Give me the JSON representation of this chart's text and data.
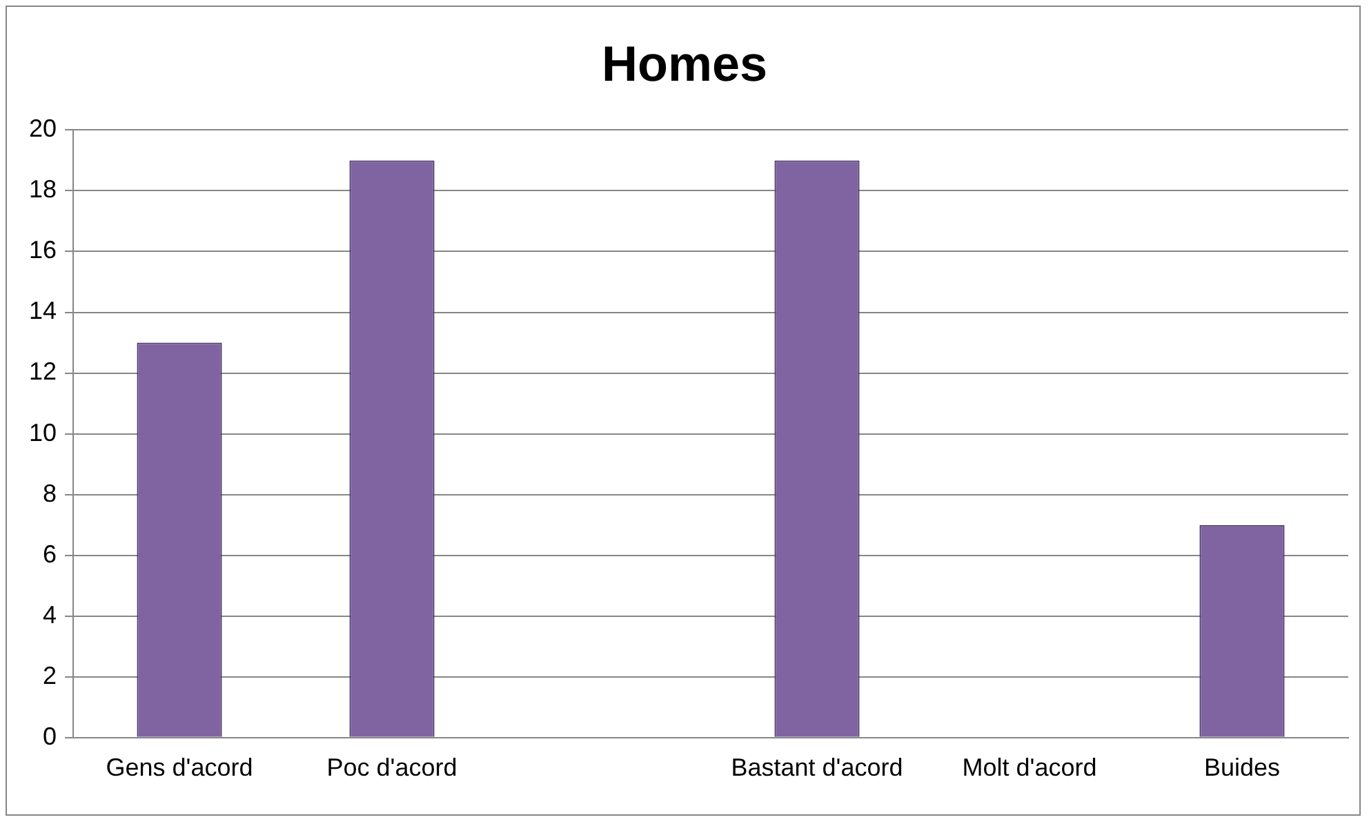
{
  "chart_data": {
    "type": "bar",
    "title": "Homes",
    "categories": [
      "Gens d'acord",
      "Poc d'acord",
      null,
      "Bastant d'acord",
      "Molt d'acord",
      "Buides"
    ],
    "values": [
      13,
      19,
      null,
      19,
      0,
      7
    ],
    "color": "#8064a2",
    "ylim": [
      0,
      20
    ],
    "yticks": [
      0,
      2,
      4,
      6,
      8,
      10,
      12,
      14,
      16,
      18,
      20
    ],
    "grid": "y",
    "legend": false
  }
}
